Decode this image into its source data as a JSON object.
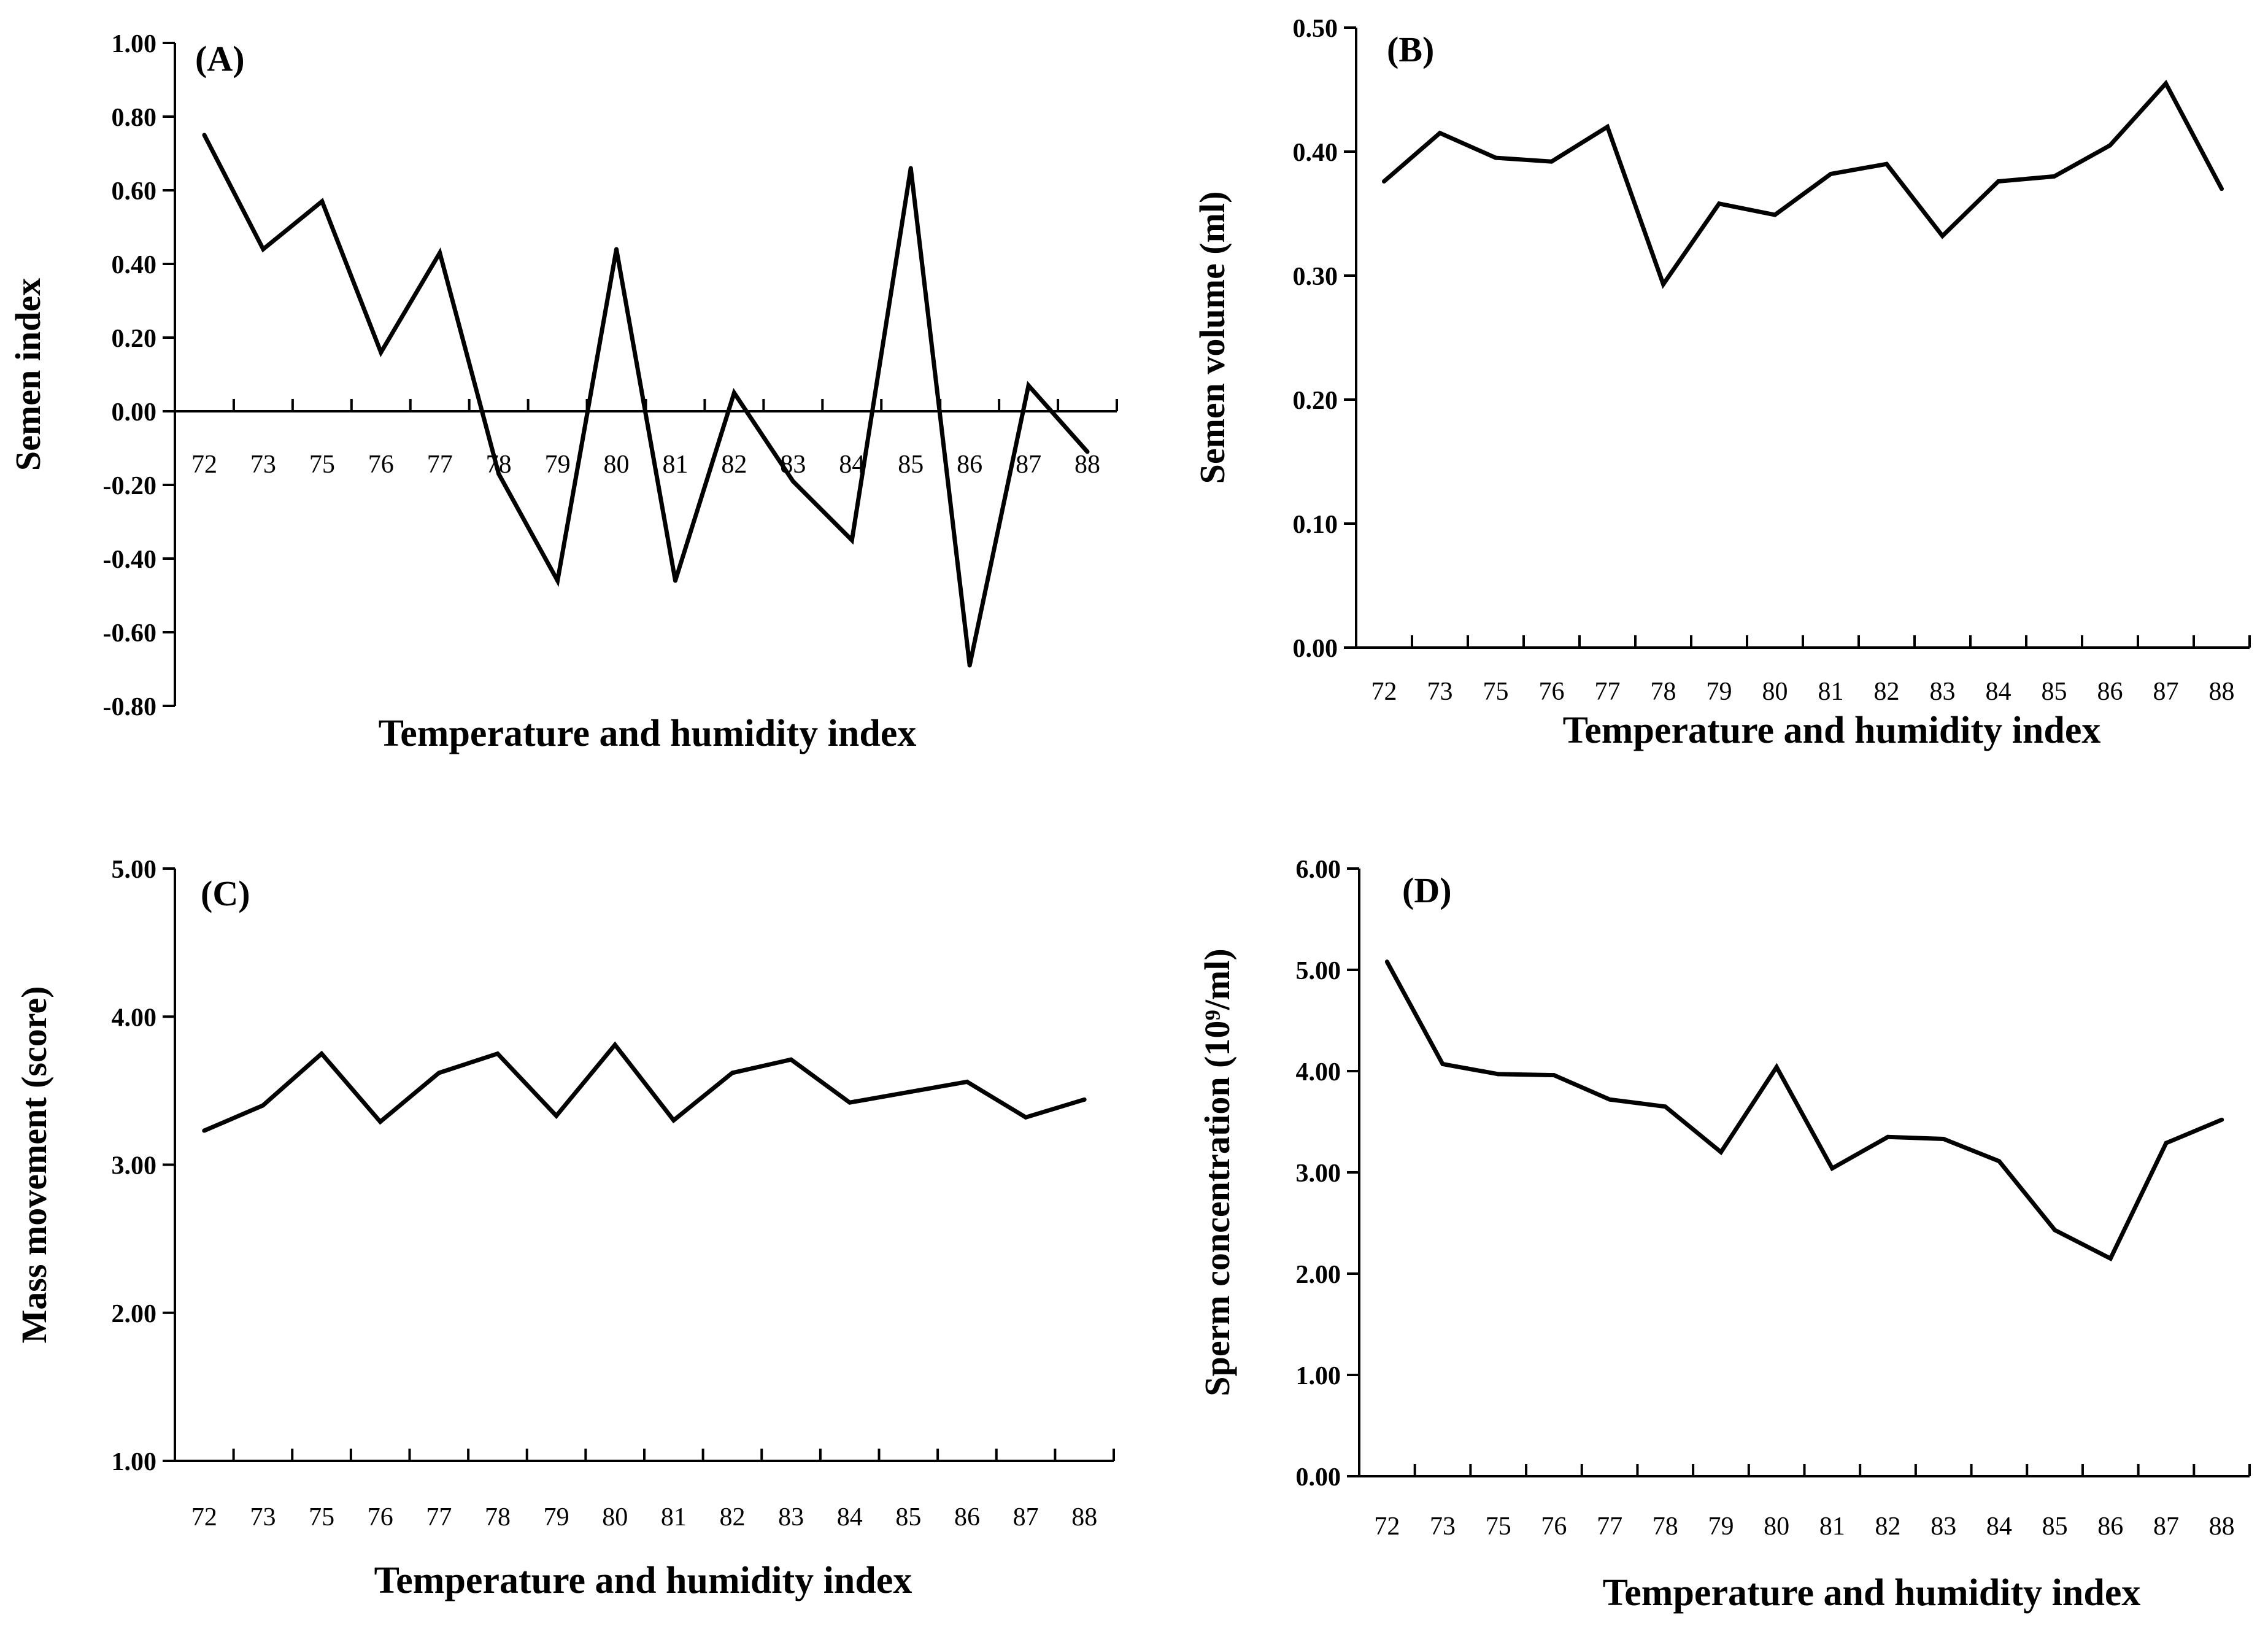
{
  "chart_data": [
    {
      "type": "line",
      "title": "(A)",
      "xlabel": "Temperature and humidity index",
      "ylabel": "Semen index",
      "ylim": [
        -0.8,
        1.0
      ],
      "ytick_step": 0.2,
      "ytick_labels": [
        "-0.80",
        "-0.60",
        "-0.40",
        "-0.20",
        "0.00",
        "0.20",
        "0.40",
        "0.60",
        "0.80",
        "1.00"
      ],
      "categories": [
        "72",
        "73",
        "75",
        "76",
        "77",
        "78",
        "79",
        "80",
        "81",
        "82",
        "83",
        "84",
        "85",
        "86",
        "87",
        "88"
      ],
      "values": [
        0.75,
        0.44,
        0.57,
        0.16,
        0.43,
        -0.17,
        -0.46,
        0.44,
        -0.46,
        0.05,
        -0.19,
        -0.35,
        0.66,
        -0.69,
        0.07,
        -0.11
      ]
    },
    {
      "type": "line",
      "title": "(B)",
      "xlabel": "Temperature and humidity index",
      "ylabel": "Semen volume (ml)",
      "ylim": [
        0.0,
        0.5
      ],
      "ytick_step": 0.1,
      "ytick_labels": [
        "0.00",
        "0.10",
        "0.20",
        "0.30",
        "0.40",
        "0.50"
      ],
      "categories": [
        "72",
        "73",
        "75",
        "76",
        "77",
        "78",
        "79",
        "80",
        "81",
        "82",
        "83",
        "84",
        "85",
        "86",
        "87",
        "88"
      ],
      "values": [
        0.376,
        0.415,
        0.395,
        0.392,
        0.42,
        0.293,
        0.358,
        0.349,
        0.382,
        0.39,
        0.332,
        0.376,
        0.38,
        0.405,
        0.455,
        0.37
      ]
    },
    {
      "type": "line",
      "title": "(C)",
      "xlabel": "Temperature and humidity index",
      "ylabel": "Mass movement (score)",
      "ylim": [
        1.0,
        5.0
      ],
      "ytick_step": 1.0,
      "ytick_labels": [
        "1.00",
        "2.00",
        "3.00",
        "4.00",
        "5.00"
      ],
      "categories": [
        "72",
        "73",
        "75",
        "76",
        "77",
        "78",
        "79",
        "80",
        "81",
        "82",
        "83",
        "84",
        "85",
        "86",
        "87",
        "88"
      ],
      "values": [
        3.23,
        3.4,
        3.75,
        3.29,
        3.62,
        3.75,
        3.33,
        3.81,
        3.3,
        3.62,
        3.71,
        3.42,
        3.49,
        3.56,
        3.32,
        3.44
      ]
    },
    {
      "type": "line",
      "title": "(D)",
      "xlabel": "Temperature and humidity index",
      "ylabel": "Sperm concentration (10⁹/ml)",
      "ylim": [
        0.0,
        6.0
      ],
      "ytick_step": 1.0,
      "ytick_labels": [
        "0.00",
        "1.00",
        "2.00",
        "3.00",
        "4.00",
        "5.00",
        "6.00"
      ],
      "categories": [
        "72",
        "73",
        "75",
        "76",
        "77",
        "78",
        "79",
        "80",
        "81",
        "82",
        "83",
        "84",
        "85",
        "86",
        "87",
        "88"
      ],
      "values": [
        5.08,
        4.07,
        3.97,
        3.96,
        3.72,
        3.65,
        3.2,
        4.04,
        3.04,
        3.35,
        3.33,
        3.11,
        2.43,
        2.15,
        3.29,
        3.52
      ]
    }
  ]
}
